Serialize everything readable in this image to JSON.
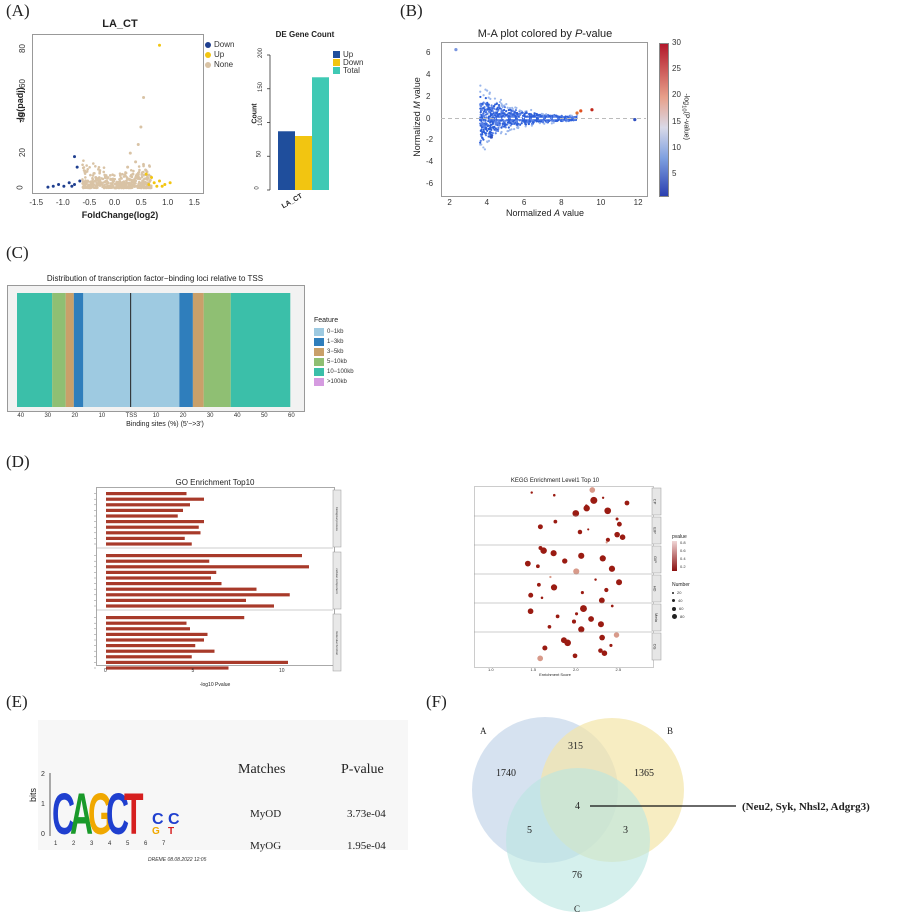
{
  "panel_labels": [
    "(A)",
    "(B)",
    "(C)",
    "(D)",
    "(E)",
    "(F)"
  ],
  "volcano": {
    "title": "LA_CT",
    "xlabel": "FoldChange(log2)",
    "ylabel": "-lg(padj)",
    "xticks": [
      "-1.5",
      "-1.0",
      "-0.5",
      "0.0",
      "0.5",
      "1.0",
      "1.5"
    ],
    "yticks": [
      "0",
      "20",
      "40",
      "60",
      "80"
    ],
    "legend": [
      {
        "label": "Down",
        "color": "#1f3f8f"
      },
      {
        "label": "Up",
        "color": "#f2c511"
      },
      {
        "label": "None",
        "color": "#d9c3a5"
      }
    ]
  },
  "de_count": {
    "title": "DE Gene Count",
    "ylabel": "Count",
    "yticks": [
      "0",
      "50",
      "100",
      "150",
      "200"
    ],
    "category": "LA_CT",
    "legend": [
      {
        "label": "Up",
        "color": "#1f4e9c"
      },
      {
        "label": "Down",
        "color": "#f2c511"
      },
      {
        "label": "Total",
        "color": "#3fc9b4"
      }
    ]
  },
  "ma": {
    "title_main": "M-A plot colored by ",
    "title_italic": "P",
    "title_tail": "-value",
    "xlabel_main": "Normalized ",
    "xlabel_italic": "A",
    "xlabel_tail": " value",
    "ylabel_main": "Normalized ",
    "ylabel_italic": "M",
    "ylabel_tail": " value",
    "xticks": [
      "2",
      "4",
      "6",
      "8",
      "10",
      "12"
    ],
    "yticks": [
      "6",
      "4",
      "2",
      "0",
      "-2",
      "-4",
      "-6"
    ],
    "colorbar_ticks": [
      "30",
      "25",
      "20",
      "15",
      "10",
      "5"
    ],
    "colorbar_label_main": "-log",
    "colorbar_label_sub": "10",
    "colorbar_label_tail": "(P-value)"
  },
  "tss": {
    "title": "Distribution of transcription factor−binding loci relative to TSS",
    "xlabel": "Binding sites (%) (5'−>3')",
    "xticks": [
      "40",
      "30",
      "20",
      "10",
      "TSS",
      "10",
      "20",
      "30",
      "40",
      "50",
      "60"
    ],
    "legend_title": "Feature",
    "legend": [
      {
        "label": "0−1kb",
        "color": "#9ecae1"
      },
      {
        "label": "1−3kb",
        "color": "#2f7ebc"
      },
      {
        "label": "3−5kb",
        "color": "#c9a06a"
      },
      {
        "label": "5−10kb",
        "color": "#8fbf73"
      },
      {
        "label": "10−100kb",
        "color": "#3bbfa9"
      },
      {
        "label": ">100kb",
        "color": "#d59be0"
      }
    ]
  },
  "go": {
    "title": "GO Enrichment Top10",
    "xlabel": "-log10 Pvalue",
    "xticks": [
      "0",
      "5",
      "10"
    ],
    "groups": [
      "biological process",
      "cellular component",
      "molecular function"
    ]
  },
  "kegg": {
    "title": "KEGG Enrichment Level1 Top 10",
    "xlabel": "Enrichment Score",
    "xticks": [
      "1.0",
      "1.5",
      "2.0",
      "2.5"
    ],
    "groups": [
      "CP",
      "EIP",
      "GIP",
      "HD",
      "Meta",
      "OS"
    ],
    "pvalue_title": "pvalue",
    "pvalue_ticks": [
      "0.8",
      "0.6",
      "0.4",
      "0.2"
    ],
    "number_title": "Number",
    "number_ticks": [
      "20",
      "40",
      "60",
      "80"
    ]
  },
  "motif": {
    "bits_label": "bits",
    "sequence": [
      "C",
      "A",
      "G",
      "C",
      "T"
    ],
    "watermark": "DREME 08.08.2022 12:05",
    "header_matches": "Matches",
    "header_pvalue": "P-value",
    "rows": [
      {
        "match": "MyOD",
        "pvalue": "3.73e-04"
      },
      {
        "match": "MyOG",
        "pvalue": "1.95e-04"
      }
    ]
  },
  "venn": {
    "set_labels": [
      "A",
      "B",
      "C"
    ],
    "counts": {
      "a_only": "1740",
      "ab": "315",
      "b_only": "1365",
      "abc": "4",
      "ac": "5",
      "bc": "3",
      "c_only": "76"
    },
    "annotation": "(Neu2, Syk, Nhsl2, Adgrg3)"
  },
  "chart_data": [
    {
      "type": "scatter",
      "title": "LA_CT",
      "xlabel": "FoldChange(log2)",
      "ylabel": "-lg(padj)",
      "xlim": [
        -1.6,
        1.6
      ],
      "ylim": [
        0,
        85
      ],
      "series": [
        {
          "name": "Down",
          "points": [
            [
              -1.2,
              1
            ],
            [
              -1.1,
              2
            ],
            [
              -1.0,
              1
            ],
            [
              -0.9,
              3
            ],
            [
              -0.85,
              1
            ],
            [
              -0.8,
              2
            ],
            [
              -0.7,
              4
            ],
            [
              -1.3,
              0.5
            ],
            [
              -0.75,
              12
            ],
            [
              -0.8,
              18
            ]
          ]
        },
        {
          "name": "Up",
          "points": [
            [
              0.6,
              2
            ],
            [
              0.7,
              3
            ],
            [
              0.75,
              1
            ],
            [
              0.8,
              4
            ],
            [
              0.9,
              2
            ],
            [
              1.0,
              3
            ],
            [
              0.65,
              6
            ],
            [
              0.85,
              1
            ],
            [
              0.55,
              8
            ],
            [
              0.8,
              82
            ]
          ]
        },
        {
          "name": "None",
          "points": [
            [
              0,
              1
            ],
            [
              0.1,
              3
            ],
            [
              -0.1,
              2
            ],
            [
              0.2,
              5
            ],
            [
              -0.2,
              4
            ],
            [
              0.3,
              8
            ],
            [
              -0.3,
              3
            ],
            [
              0.35,
              15
            ],
            [
              0.4,
              25
            ],
            [
              0.45,
              35
            ],
            [
              0.5,
              52
            ],
            [
              0.2,
              12
            ],
            [
              -0.4,
              6
            ],
            [
              0.25,
              20
            ]
          ]
        }
      ]
    },
    {
      "type": "bar",
      "title": "DE Gene Count",
      "categories": [
        "LA_CT"
      ],
      "series": [
        {
          "name": "Up",
          "values": [
            87
          ]
        },
        {
          "name": "Down",
          "values": [
            80
          ]
        },
        {
          "name": "Total",
          "values": [
            167
          ]
        }
      ],
      "ylabel": "Count",
      "ylim": [
        0,
        200
      ]
    },
    {
      "type": "scatter",
      "title": "M-A plot colored by P-value",
      "xlabel": "Normalized A value",
      "ylabel": "Normalized M value",
      "xlim": [
        1.5,
        12.5
      ],
      "ylim": [
        -7,
        7
      ],
      "colorbar": [
        1,
        30
      ],
      "highlighted_points": [
        [
          2.3,
          6.3
        ],
        [
          9.0,
          0.7
        ],
        [
          9.6,
          0.8
        ],
        [
          8.8,
          0.5
        ],
        [
          4.2,
          -1.7
        ],
        [
          11.9,
          -0.1
        ]
      ]
    },
    {
      "type": "bar",
      "title": "Distribution of transcription factor−binding loci relative to TSS",
      "orientation": "horizontal-stacked",
      "segments": [
        {
          "feature": "10−100kb",
          "from": -42,
          "to": -29
        },
        {
          "feature": "5−10kb",
          "from": -29,
          "to": -24
        },
        {
          "feature": "3−5kb",
          "from": -24,
          "to": -21
        },
        {
          "feature": "1−3kb",
          "from": -21,
          "to": -17.5
        },
        {
          "feature": "0−1kb",
          "from": -17.5,
          "to": 18
        },
        {
          "feature": "1−3kb",
          "from": 18,
          "to": 23
        },
        {
          "feature": "3−5kb",
          "from": 23,
          "to": 27
        },
        {
          "feature": "5−10kb",
          "from": 27,
          "to": 37
        },
        {
          "feature": "10−100kb",
          "from": 37,
          "to": 59
        }
      ],
      "xlim": [
        -42,
        60
      ]
    },
    {
      "type": "bar",
      "title": "GO Enrichment Top10",
      "orientation": "horizontal",
      "xlabel": "-log10 Pvalue",
      "series": [
        {
          "name": "biological process",
          "values": [
            4.6,
            5.6,
            4.8,
            4.4,
            4.1,
            5.6,
            5.3,
            5.4,
            4.5,
            4.9
          ]
        },
        {
          "name": "cellular component",
          "values": [
            11.2,
            5.9,
            11.6,
            6.3,
            6.0,
            6.6,
            8.6,
            10.5,
            8.0,
            9.6
          ]
        },
        {
          "name": "molecular function",
          "values": [
            7.9,
            4.6,
            4.8,
            5.8,
            5.6,
            5.1,
            6.2,
            4.9,
            10.4,
            7.0
          ]
        }
      ]
    },
    {
      "type": "scatter",
      "title": "KEGG Enrichment Level1 Top 10",
      "xlabel": "Enrichment Score",
      "xlim": [
        0.8,
        2.8
      ]
    }
  ]
}
